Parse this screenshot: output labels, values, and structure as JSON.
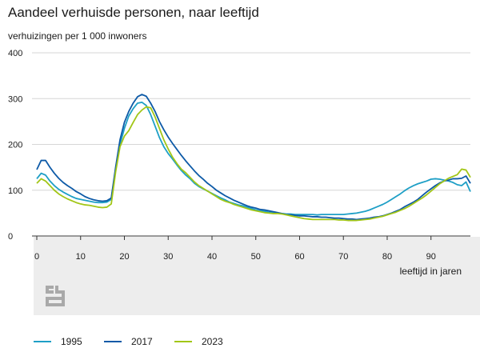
{
  "title": "Aandeel verhuisde personen, naar leeftijd",
  "subtitle": "verhuizingen per 1 000 inwoners",
  "chart_data": {
    "type": "line",
    "title": "Aandeel verhuisde personen, naar leeftijd",
    "ylabel": "verhuizingen per 1 000 inwoners",
    "xlabel": "leeftijd in jaren",
    "xlim": [
      0,
      99
    ],
    "ylim": [
      0,
      400
    ],
    "xticks": [
      0,
      10,
      20,
      30,
      40,
      50,
      60,
      70,
      80,
      90
    ],
    "yticks": [
      0,
      100,
      200,
      300,
      400
    ],
    "grid": true,
    "legend_position": "bottom-left",
    "x": [
      0,
      1,
      2,
      3,
      4,
      5,
      6,
      7,
      8,
      9,
      10,
      11,
      12,
      13,
      14,
      15,
      16,
      17,
      18,
      19,
      20,
      21,
      22,
      23,
      24,
      25,
      26,
      27,
      28,
      29,
      30,
      31,
      32,
      33,
      34,
      35,
      36,
      37,
      38,
      39,
      40,
      41,
      42,
      43,
      44,
      45,
      46,
      47,
      48,
      49,
      50,
      51,
      52,
      53,
      54,
      55,
      56,
      57,
      58,
      59,
      60,
      61,
      62,
      63,
      64,
      65,
      66,
      67,
      68,
      69,
      70,
      71,
      72,
      73,
      74,
      75,
      76,
      77,
      78,
      79,
      80,
      81,
      82,
      83,
      84,
      85,
      86,
      87,
      88,
      89,
      90,
      91,
      92,
      93,
      94,
      95,
      96,
      97,
      98,
      99
    ],
    "series": [
      {
        "name": "1995",
        "color": "#1e9fc6",
        "values": [
          125,
          137,
          133,
          120,
          110,
          102,
          96,
          91,
          86,
          82,
          80,
          78,
          76,
          74,
          73,
          73,
          74,
          80,
          145,
          200,
          235,
          262,
          278,
          290,
          292,
          285,
          265,
          240,
          215,
          195,
          180,
          168,
          155,
          143,
          133,
          125,
          115,
          108,
          103,
          98,
          93,
          88,
          83,
          79,
          74,
          71,
          68,
          66,
          63,
          60,
          57,
          55,
          54,
          52,
          51,
          50,
          49,
          48,
          48,
          47,
          47,
          47,
          47,
          47,
          46,
          47,
          47,
          47,
          47,
          47,
          47,
          48,
          49,
          50,
          52,
          54,
          57,
          61,
          65,
          69,
          74,
          80,
          86,
          92,
          99,
          105,
          110,
          114,
          117,
          120,
          124,
          125,
          124,
          122,
          120,
          117,
          112,
          110,
          118,
          97
        ]
      },
      {
        "name": "2017",
        "color": "#0d5aa7",
        "values": [
          145,
          165,
          165,
          150,
          137,
          126,
          117,
          110,
          104,
          97,
          92,
          86,
          82,
          79,
          77,
          76,
          77,
          83,
          150,
          210,
          248,
          272,
          290,
          304,
          309,
          305,
          290,
          272,
          250,
          232,
          216,
          202,
          189,
          176,
          164,
          153,
          142,
          132,
          124,
          115,
          108,
          100,
          94,
          88,
          83,
          78,
          74,
          70,
          66,
          63,
          61,
          58,
          57,
          55,
          53,
          51,
          49,
          47,
          46,
          45,
          44,
          44,
          43,
          42,
          42,
          41,
          41,
          40,
          39,
          39,
          38,
          37,
          37,
          36,
          37,
          38,
          39,
          41,
          42,
          44,
          47,
          50,
          54,
          58,
          64,
          69,
          74,
          80,
          88,
          96,
          103,
          110,
          116,
          120,
          122,
          125,
          125,
          126,
          131,
          115
        ]
      },
      {
        "name": "2023",
        "color": "#a2c617",
        "values": [
          115,
          125,
          120,
          110,
          100,
          92,
          86,
          81,
          77,
          73,
          70,
          68,
          67,
          65,
          63,
          62,
          63,
          70,
          140,
          195,
          218,
          230,
          248,
          265,
          275,
          282,
          280,
          260,
          235,
          210,
          190,
          172,
          158,
          146,
          138,
          128,
          118,
          110,
          104,
          98,
          92,
          86,
          80,
          76,
          73,
          69,
          66,
          63,
          60,
          57,
          55,
          53,
          51,
          50,
          49,
          49,
          48,
          46,
          44,
          42,
          40,
          38,
          37,
          36,
          36,
          36,
          36,
          36,
          36,
          35,
          35,
          34,
          34,
          34,
          35,
          36,
          37,
          39,
          41,
          43,
          46,
          49,
          52,
          56,
          60,
          65,
          71,
          77,
          83,
          90,
          98,
          106,
          114,
          120,
          126,
          130,
          134,
          146,
          144,
          128
        ]
      }
    ]
  },
  "legend": [
    {
      "label": "1995",
      "color": "#1e9fc6"
    },
    {
      "label": "2017",
      "color": "#0d5aa7"
    },
    {
      "label": "2023",
      "color": "#a2c617"
    }
  ],
  "logo_icon": "cbs-logo-icon",
  "colors": {
    "grid": "#d6d6d6",
    "axis": "#888888",
    "plot_background": "#ededed"
  }
}
